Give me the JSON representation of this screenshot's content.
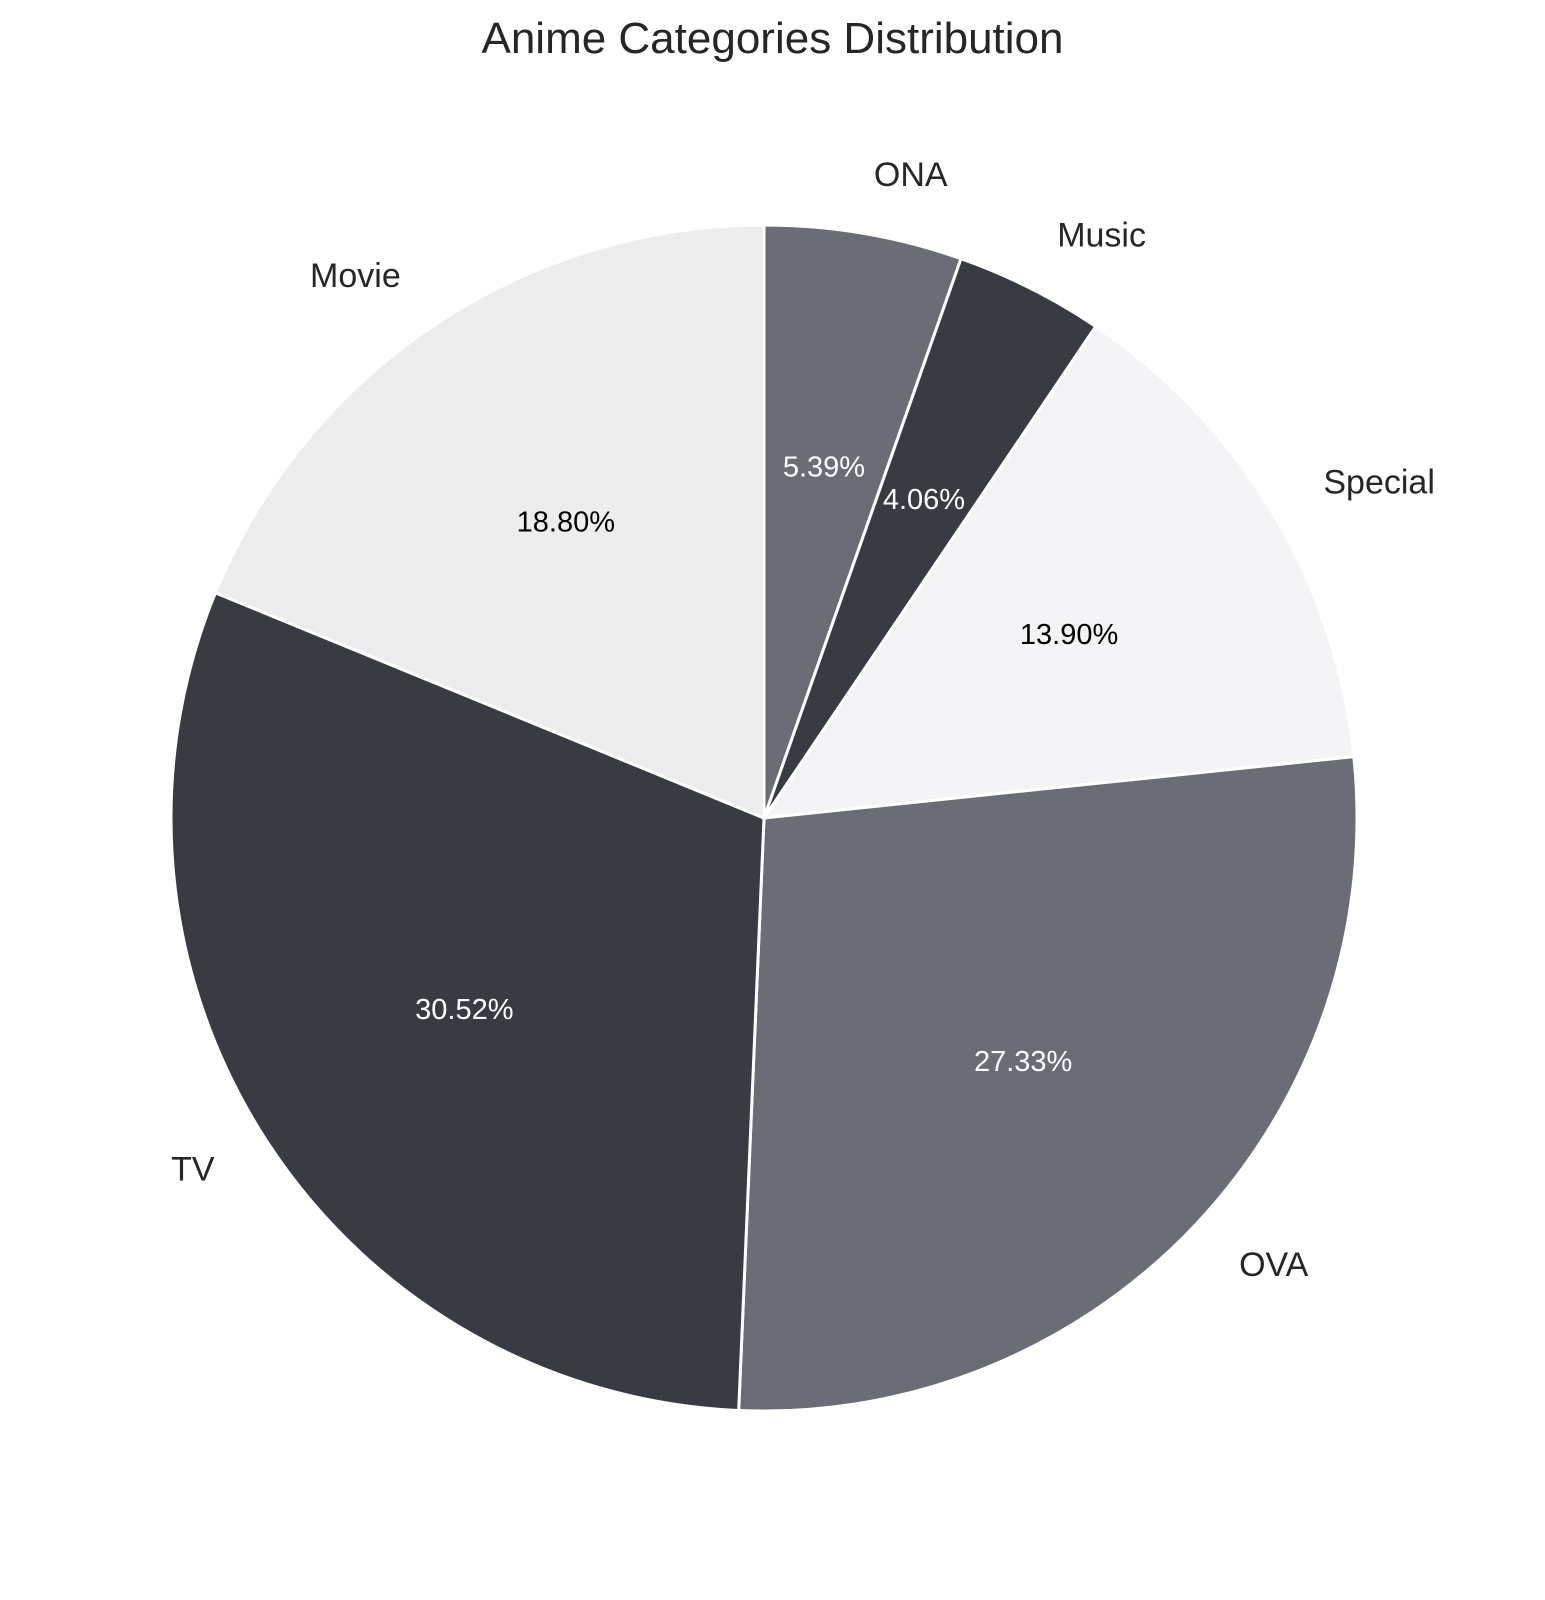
{
  "chart_data": {
    "type": "pie",
    "title": "Anime Categories Distribution",
    "start_angle_deg": 90,
    "direction": "clockwise",
    "slices": [
      {
        "label": "ONA",
        "value": 5.39,
        "pct_text": "5.39%",
        "color": "#6a6d76",
        "text_color": "#ffffff"
      },
      {
        "label": "Music",
        "value": 4.06,
        "pct_text": "4.06%",
        "color": "#393b42",
        "text_color": "#ffffff"
      },
      {
        "label": "Special",
        "value": 13.9,
        "pct_text": "13.90%",
        "color": "#f4f4f6",
        "text_color": "#000000"
      },
      {
        "label": "OVA",
        "value": 27.33,
        "pct_text": "27.33%",
        "color": "#6a6d76",
        "text_color": "#ffffff"
      },
      {
        "label": "TV",
        "value": 30.52,
        "pct_text": "30.52%",
        "color": "#393b42",
        "text_color": "#ffffff"
      },
      {
        "label": "Movie",
        "value": 18.8,
        "pct_text": "18.80%",
        "color": "#ededed",
        "text_color": "#000000"
      }
    ]
  }
}
